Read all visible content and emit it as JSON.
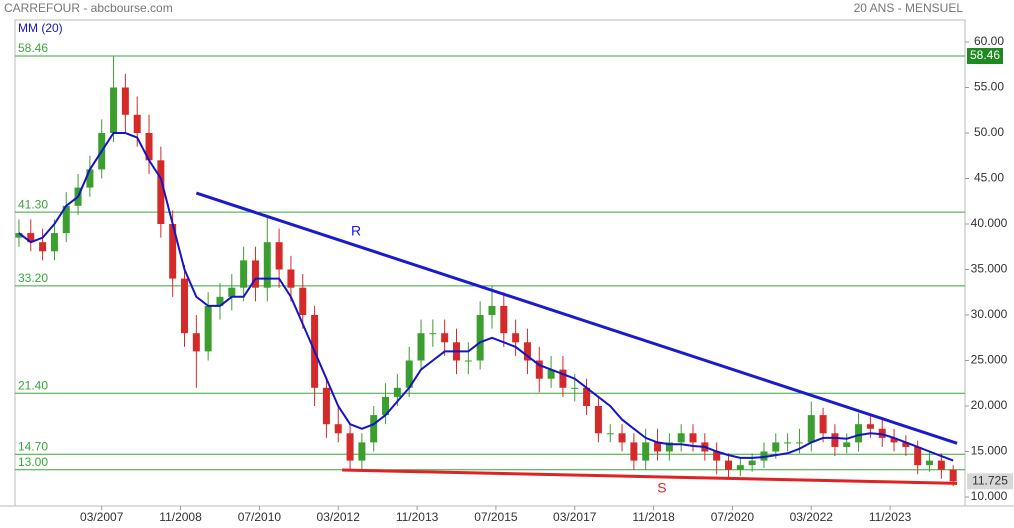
{
  "chart_data": {
    "type": "candlestick",
    "title": "CARREFOUR - abcbourse.com",
    "subtitle": "20 ANS - MENSUEL",
    "x": [
      "06/2005",
      "09/2005",
      "12/2005",
      "03/2006",
      "06/2006",
      "09/2006",
      "12/2006",
      "03/2007",
      "06/2007",
      "09/2007",
      "12/2007",
      "03/2008",
      "06/2008",
      "09/2008",
      "12/2008",
      "03/2009",
      "06/2009",
      "09/2009",
      "12/2009",
      "03/2010",
      "06/2010",
      "09/2010",
      "12/2010",
      "03/2011",
      "06/2011",
      "09/2011",
      "12/2011",
      "03/2012",
      "06/2012",
      "09/2012",
      "12/2012",
      "03/2013",
      "06/2013",
      "09/2013",
      "12/2013",
      "03/2014",
      "06/2014",
      "09/2014",
      "12/2014",
      "03/2015",
      "06/2015",
      "09/2015",
      "12/2015",
      "03/2016",
      "06/2016",
      "09/2016",
      "12/2016",
      "03/2017",
      "06/2017",
      "09/2017",
      "12/2017",
      "03/2018",
      "06/2018",
      "09/2018",
      "12/2018",
      "03/2019",
      "06/2019",
      "09/2019",
      "12/2019",
      "03/2020",
      "06/2020",
      "09/2020",
      "12/2020",
      "03/2021",
      "06/2021",
      "09/2021",
      "12/2021",
      "03/2022",
      "06/2022",
      "09/2022",
      "12/2022",
      "03/2023",
      "06/2023",
      "09/2023",
      "12/2023",
      "03/2024",
      "06/2024",
      "09/2024",
      "12/2024",
      "03/2025"
    ],
    "open": [
      38.5,
      39,
      38,
      37,
      39,
      42,
      44,
      46,
      50,
      55,
      52,
      50,
      47,
      40,
      34,
      28,
      26,
      31,
      32,
      33,
      36,
      33,
      38,
      35,
      33,
      30,
      22,
      18,
      17,
      14,
      16,
      19,
      21,
      22,
      25,
      28,
      28,
      27,
      25,
      25,
      30,
      31,
      28,
      27,
      25,
      23,
      24,
      22,
      22,
      20,
      17,
      17,
      16,
      14,
      16,
      15,
      16,
      17,
      16,
      15,
      14,
      13,
      13.5,
      14,
      15,
      16,
      16,
      16,
      19,
      17,
      15.5,
      16,
      18,
      17.5,
      16.5,
      16,
      15.5,
      13.5,
      14,
      13
    ],
    "high": [
      40.5,
      40.5,
      39.5,
      40.5,
      43.5,
      45.5,
      47.5,
      51.5,
      58.46,
      56.5,
      54,
      52,
      48.5,
      41.5,
      35.5,
      30,
      32.5,
      33.5,
      34.5,
      37.5,
      37.5,
      41,
      39.5,
      36.5,
      34.5,
      31,
      23,
      20,
      18,
      17,
      20,
      22.5,
      23.5,
      26.5,
      29.5,
      29.5,
      29.5,
      28.5,
      27,
      31.5,
      33.2,
      32.5,
      29.5,
      28.5,
      26.5,
      25.5,
      25.5,
      23.5,
      23,
      21,
      18,
      18,
      17,
      17.5,
      17.5,
      17,
      18,
      18,
      17,
      16,
      14.8,
      14.3,
      14.8,
      16,
      17,
      17,
      17.5,
      20.5,
      19.8,
      18,
      17,
      19.2,
      19,
      18.5,
      17.5,
      16.8,
      16.2,
      15,
      14.8,
      13.5
    ],
    "low": [
      37.5,
      37,
      36,
      36,
      38,
      41,
      43,
      45,
      49,
      50,
      48.5,
      45.5,
      38.5,
      32,
      26.5,
      22,
      25,
      29.5,
      30.5,
      31.5,
      31.5,
      31.5,
      33,
      31.5,
      28.5,
      20,
      16.5,
      16,
      13,
      13,
      15,
      18,
      20,
      21,
      24,
      26.5,
      25.5,
      23.5,
      23.5,
      24,
      28.5,
      26.5,
      25.5,
      23.5,
      21.5,
      22,
      21,
      20.5,
      19,
      16,
      16,
      15,
      13,
      13,
      14,
      14,
      15,
      15,
      14,
      12.5,
      12,
      12.3,
      12.8,
      13.2,
      14.2,
      15,
      14.8,
      15,
      16,
      14.5,
      14.8,
      15,
      16.5,
      15.5,
      15,
      14.5,
      12.5,
      12.8,
      12,
      11.2
    ],
    "close": [
      39,
      38,
      37,
      39,
      42,
      44,
      46,
      50,
      55,
      52,
      50,
      47,
      40,
      34,
      28,
      26,
      31,
      32,
      33,
      36,
      33,
      38,
      35,
      33,
      30,
      22,
      18,
      17,
      14,
      16,
      19,
      21,
      22,
      25,
      28,
      28,
      27,
      25,
      25,
      30,
      31,
      28,
      27,
      25,
      23,
      24,
      22,
      22,
      20,
      17,
      17,
      16,
      14,
      16,
      15,
      16,
      17,
      16,
      15,
      14,
      13,
      13.5,
      14,
      15,
      16,
      16,
      16,
      19,
      17,
      15.5,
      16,
      18,
      17.5,
      16.5,
      16,
      15.5,
      13.5,
      14,
      13,
      11.725
    ],
    "up_color": "#3c9e2e",
    "down_color": "#d42a2a",
    "ma": {
      "name": "MM (20)",
      "color": "#1414c8",
      "values": [
        39,
        38,
        38.5,
        40,
        42,
        43,
        46,
        48,
        50,
        50,
        49.5,
        47,
        45,
        40,
        35,
        32,
        31,
        31,
        32,
        32,
        34,
        34,
        34,
        32,
        29,
        26,
        23,
        20,
        18,
        17.5,
        18,
        19,
        20.5,
        22,
        24,
        25,
        26,
        26,
        26,
        27,
        27.5,
        27,
        26.5,
        25.5,
        24.5,
        24,
        23.5,
        23,
        22,
        21,
        20,
        18.5,
        17.5,
        16.5,
        16,
        15.8,
        15.8,
        15.6,
        15.5,
        15,
        14.6,
        14.3,
        14.3,
        14.4,
        14.6,
        14.8,
        15.3,
        16,
        16.5,
        16.5,
        16.4,
        16.8,
        17,
        16.9,
        16.5,
        16,
        15.5,
        15,
        14.5,
        14
      ]
    },
    "levels": [
      58.46,
      {
        "value": 41.3,
        "label": "41.30"
      },
      {
        "value": 33.2,
        "label": "33.20"
      },
      {
        "value": 21.4,
        "label": "21.40"
      },
      {
        "value": 14.7,
        "label": "14.70"
      },
      {
        "value": 13,
        "label": "13.00"
      }
    ],
    "level_color": "#3aa53a",
    "trendlines": [
      {
        "label": "R",
        "color": "#1a1ad0",
        "x": [
          "03/2009",
          "04/2025"
        ],
        "values": [
          43.4,
          15.9
        ]
      },
      {
        "label": "S",
        "color": "#e02222",
        "x": [
          "04/2012",
          "04/2025"
        ],
        "values": [
          12.97,
          11.5
        ]
      }
    ],
    "xlim": [
      "05/2005",
      "06/2025"
    ],
    "xticks": [
      "03/2007",
      "11/2008",
      "07/2010",
      "03/2012",
      "11/2013",
      "07/2015",
      "03/2017",
      "11/2018",
      "07/2020",
      "03/2022",
      "11/2023"
    ],
    "ylim": [
      10,
      60
    ],
    "yticks": [
      {
        "value": 10,
        "label": "10.000"
      },
      {
        "value": 15,
        "label": "15.000"
      },
      {
        "value": 20,
        "label": "20.000"
      },
      {
        "value": 25,
        "label": "25.000"
      },
      {
        "value": 30,
        "label": "30.000"
      },
      {
        "value": 35,
        "label": "35.000"
      },
      {
        "value": 40,
        "label": "40.000"
      },
      {
        "value": 45,
        "label": "45.00"
      },
      {
        "value": 50,
        "label": "50.00"
      },
      {
        "value": 55,
        "label": "55.00"
      },
      {
        "value": 60,
        "label": "60.00"
      }
    ]
  }
}
